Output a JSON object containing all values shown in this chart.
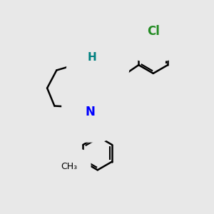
{
  "bg_color": "#e8e8e8",
  "atom_colors": {
    "N_plus": "#0000ff",
    "N": "#0000ff",
    "O": "#ff0000",
    "H": "#008080",
    "Cl": "#228B22"
  },
  "bond_color": "#000000",
  "bond_width": 1.8,
  "figsize": [
    3.0,
    3.0
  ],
  "dpi": 100,
  "xlim": [
    0,
    10
  ],
  "ylim": [
    0,
    10
  ]
}
